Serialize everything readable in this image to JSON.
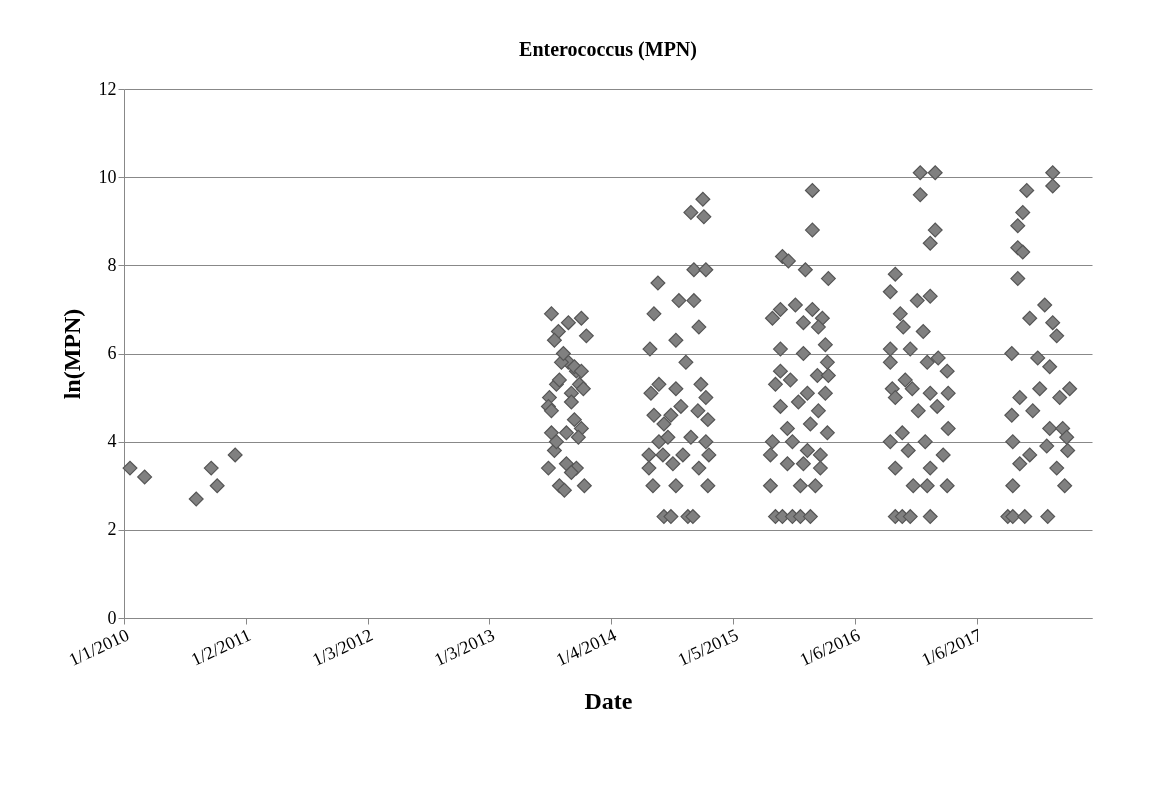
{
  "chart_data": {
    "type": "scatter",
    "title": "Enterococcus (MPN)",
    "xlabel": "Date",
    "ylabel": "ln(MPN)",
    "marker": "diamond",
    "grid": "y",
    "xlim": [
      "2010-01-01",
      "2017-12-18"
    ],
    "xticks": [
      {
        "value": "2010-01-01",
        "label": "1/1/2010"
      },
      {
        "value": "2011-01-02",
        "label": "1/2/2011"
      },
      {
        "value": "2012-01-03",
        "label": "1/3/2012"
      },
      {
        "value": "2013-01-03",
        "label": "1/3/2013"
      },
      {
        "value": "2014-01-04",
        "label": "1/4/2014"
      },
      {
        "value": "2015-01-05",
        "label": "1/5/2015"
      },
      {
        "value": "2016-01-06",
        "label": "1/6/2016"
      },
      {
        "value": "2017-01-06",
        "label": "1/6/2017"
      }
    ],
    "ylim": [
      0,
      12
    ],
    "yticks": [
      0,
      2,
      4,
      6,
      8,
      10,
      12
    ],
    "series": [
      {
        "color": "#808080",
        "x": [
          "2010-01-19",
          "2010-03-04",
          "2010-08-06",
          "2010-09-20",
          "2010-10-08",
          "2010-12-01",
          "2013-07-08",
          "2013-07-29",
          "2013-07-17",
          "2013-08-28",
          "2013-10-06",
          "2013-08-28",
          "2013-08-07",
          "2013-07-23",
          "2013-07-02",
          "2013-06-29",
          "2013-07-08",
          "2013-06-29",
          "2013-07-17",
          "2013-08-01",
          "2013-08-16",
          "2013-08-22",
          "2013-09-06",
          "2013-09-21",
          "2013-09-30",
          "2013-10-06",
          "2013-09-27",
          "2013-09-15",
          "2013-09-21",
          "2013-10-15",
          "2013-10-21",
          "2013-10-12",
          "2013-09-06",
          "2013-08-13",
          "2013-08-01",
          "2013-09-15",
          "2013-10-06",
          "2013-07-08",
          "2013-07-23",
          "2013-08-22",
          "2013-09-06",
          "2014-05-24",
          "2014-09-09",
          "2014-10-15",
          "2014-07-26",
          "2014-09-09",
          "2014-05-12",
          "2014-09-24",
          "2014-07-17",
          "2014-04-30",
          "2014-08-16",
          "2014-05-27",
          "2014-07-17",
          "2014-09-30",
          "2014-05-03",
          "2014-10-15",
          "2014-08-01",
          "2014-05-12",
          "2014-07-02",
          "2014-09-21",
          "2014-10-21",
          "2014-06-11",
          "2014-08-31",
          "2014-10-15",
          "2014-04-27",
          "2014-06-08",
          "2014-08-07",
          "2014-10-24",
          "2014-04-27",
          "2014-07-08",
          "2014-09-24",
          "2014-05-09",
          "2014-07-17",
          "2014-10-21",
          "2014-06-11",
          "2014-07-02",
          "2014-08-22",
          "2014-09-06",
          "2014-05-27",
          "2014-06-23",
          "2014-08-31",
          "2014-10-06",
          "2014-10-09",
          "2015-08-31",
          "2015-08-31",
          "2015-06-02",
          "2015-06-20",
          "2015-08-10",
          "2015-10-18",
          "2015-05-03",
          "2015-05-27",
          "2015-07-11",
          "2015-08-31",
          "2015-09-30",
          "2015-08-04",
          "2015-09-18",
          "2015-05-27",
          "2015-08-04",
          "2015-10-09",
          "2015-10-15",
          "2015-05-27",
          "2015-09-15",
          "2015-10-18",
          "2015-05-12",
          "2015-06-26",
          "2015-08-16",
          "2015-10-09",
          "2015-05-27",
          "2015-07-20",
          "2015-09-18",
          "2015-06-17",
          "2015-08-25",
          "2015-10-15",
          "2015-05-03",
          "2015-07-02",
          "2015-08-16",
          "2015-04-27",
          "2015-09-24",
          "2015-06-17",
          "2015-08-04",
          "2015-09-24",
          "2015-04-27",
          "2015-07-26",
          "2015-09-09",
          "2015-05-12",
          "2015-06-02",
          "2015-07-02",
          "2015-07-26",
          "2015-08-25",
          "2016-07-20",
          "2016-09-03",
          "2016-07-20",
          "2016-09-03",
          "2016-08-19",
          "2016-05-06",
          "2016-04-21",
          "2016-08-19",
          "2016-07-11",
          "2016-05-21",
          "2016-05-30",
          "2016-07-29",
          "2016-04-21",
          "2016-06-20",
          "2016-08-10",
          "2016-09-12",
          "2016-04-21",
          "2016-10-09",
          "2016-06-05",
          "2016-04-27",
          "2016-06-26",
          "2016-10-12",
          "2016-05-06",
          "2016-08-19",
          "2016-07-14",
          "2016-09-09",
          "2016-05-27",
          "2016-10-12",
          "2016-04-21",
          "2016-08-04",
          "2016-06-14",
          "2016-09-27",
          "2016-05-06",
          "2016-08-19",
          "2016-06-29",
          "2016-08-10",
          "2016-10-09",
          "2016-05-06",
          "2016-05-27",
          "2016-06-20",
          "2016-08-19",
          "2017-08-22",
          "2017-08-22",
          "2017-06-05",
          "2017-05-24",
          "2017-05-09",
          "2017-05-09",
          "2017-05-24",
          "2017-05-09",
          "2017-07-29",
          "2017-06-14",
          "2017-08-22",
          "2017-09-03",
          "2017-04-21",
          "2017-07-08",
          "2017-08-13",
          "2017-10-12",
          "2017-05-15",
          "2017-07-14",
          "2017-09-12",
          "2017-04-21",
          "2017-06-23",
          "2017-08-13",
          "2017-09-21",
          "2017-04-24",
          "2017-06-14",
          "2017-08-04",
          "2017-10-06",
          "2017-05-15",
          "2017-09-03",
          "2017-04-24",
          "2017-09-27",
          "2017-04-09",
          "2017-04-24",
          "2017-05-30",
          "2017-08-07",
          "2017-10-03"
        ],
        "values": [
          3.4,
          3.2,
          2.7,
          3.4,
          3.0,
          3.7,
          6.9,
          6.5,
          6.3,
          6.7,
          6.8,
          5.8,
          5.8,
          5.3,
          5.0,
          4.8,
          4.2,
          3.4,
          3.8,
          3.0,
          2.9,
          4.2,
          5.1,
          5.6,
          5.3,
          4.3,
          4.1,
          4.5,
          3.4,
          3.0,
          6.4,
          5.2,
          4.9,
          6.0,
          5.4,
          5.7,
          5.6,
          4.7,
          4.0,
          3.5,
          3.3,
          7.6,
          7.9,
          7.9,
          7.2,
          7.2,
          6.9,
          6.6,
          6.3,
          6.1,
          5.8,
          5.3,
          5.2,
          5.3,
          5.1,
          5.0,
          4.8,
          4.6,
          4.6,
          4.7,
          4.5,
          4.4,
          4.1,
          4.0,
          3.7,
          3.7,
          3.7,
          3.7,
          3.4,
          3.5,
          3.4,
          3.0,
          3.0,
          3.0,
          2.3,
          2.3,
          2.3,
          2.3,
          4.0,
          4.1,
          9.2,
          9.5,
          9.1,
          9.7,
          8.8,
          8.2,
          8.1,
          7.9,
          7.7,
          6.8,
          7.0,
          7.1,
          7.0,
          6.8,
          6.7,
          6.6,
          6.1,
          6.0,
          6.2,
          5.8,
          5.6,
          5.5,
          5.5,
          5.3,
          5.4,
          5.1,
          5.1,
          4.8,
          4.9,
          4.7,
          4.3,
          4.4,
          4.2,
          4.0,
          4.0,
          3.8,
          3.7,
          3.7,
          3.5,
          3.5,
          3.4,
          3.0,
          3.0,
          3.0,
          2.3,
          2.3,
          2.3,
          2.3,
          2.3,
          10.1,
          10.1,
          9.6,
          8.8,
          8.5,
          7.8,
          7.4,
          7.3,
          7.2,
          6.9,
          6.6,
          6.5,
          6.1,
          6.1,
          5.8,
          5.9,
          5.8,
          5.6,
          5.4,
          5.2,
          5.2,
          5.1,
          5.0,
          5.1,
          4.7,
          4.8,
          4.2,
          4.3,
          4.0,
          4.0,
          3.8,
          3.7,
          3.4,
          3.4,
          3.0,
          3.0,
          3.0,
          2.3,
          2.3,
          2.3,
          2.3,
          10.1,
          9.8,
          9.7,
          9.2,
          8.9,
          8.4,
          8.3,
          7.7,
          7.1,
          6.8,
          6.7,
          6.4,
          6.0,
          5.9,
          5.7,
          5.2,
          5.0,
          5.2,
          5.0,
          4.6,
          4.7,
          4.3,
          4.3,
          4.0,
          3.7,
          3.9,
          3.8,
          3.5,
          3.4,
          3.0,
          3.0,
          2.3,
          2.3,
          2.3,
          2.3,
          4.1
        ]
      }
    ]
  }
}
